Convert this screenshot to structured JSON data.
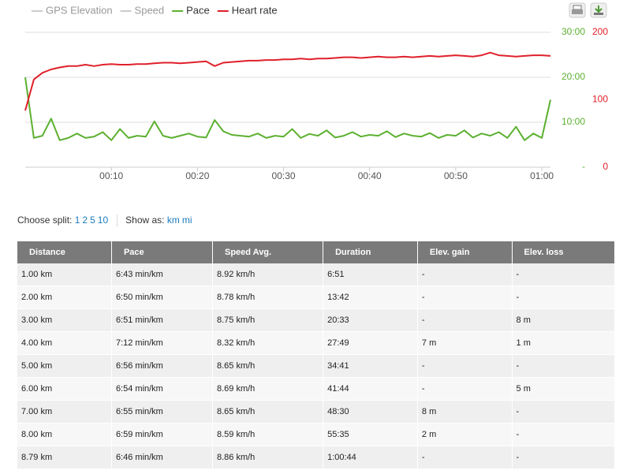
{
  "chart_data": {
    "type": "line",
    "hidden_series": [
      {
        "name": "GPS Elevation",
        "color": "#cccccc"
      },
      {
        "name": "Speed",
        "color": "#cccccc"
      }
    ],
    "x": [
      0,
      1,
      2,
      3,
      4,
      5,
      6,
      7,
      8,
      9,
      10,
      11,
      12,
      13,
      14,
      15,
      16,
      17,
      18,
      19,
      20,
      21,
      22,
      23,
      24,
      25,
      26,
      27,
      28,
      29,
      30,
      31,
      32,
      33,
      34,
      35,
      36,
      37,
      38,
      39,
      40,
      41,
      42,
      43,
      44,
      45,
      46,
      47,
      48,
      49,
      50,
      51,
      52,
      53,
      54,
      55,
      56,
      57,
      58,
      59,
      60,
      61
    ],
    "xlim": [
      0,
      61
    ],
    "xticks": [
      {
        "value": 10,
        "label": "00:10"
      },
      {
        "value": 20,
        "label": "00:20"
      },
      {
        "value": 30,
        "label": "00:30"
      },
      {
        "value": 40,
        "label": "00:40"
      },
      {
        "value": 50,
        "label": "00:50"
      },
      {
        "value": 60,
        "label": "01:00"
      }
    ],
    "ylim": [
      0,
      30
    ],
    "yticks": [
      {
        "value": 0,
        "label": "-"
      },
      {
        "value": 10,
        "label": "10:00"
      },
      {
        "value": 20,
        "label": "20:00"
      },
      {
        "value": 30,
        "label": "30:00"
      }
    ],
    "y2lim": [
      0,
      200
    ],
    "y2ticks": [
      0,
      100,
      200
    ],
    "grid": true,
    "series": [
      {
        "name": "Pace",
        "color": "#5cb030",
        "values": [
          20,
          6.5,
          7,
          10.8,
          6,
          6.5,
          7.5,
          6.5,
          6.8,
          7.8,
          6,
          8.5,
          6.5,
          7,
          6.8,
          10.2,
          7,
          6.5,
          7,
          7.5,
          6.8,
          6.6,
          10.5,
          8,
          7.2,
          7,
          6.8,
          7.5,
          6.5,
          7,
          6.8,
          8.5,
          6.5,
          7.4,
          7,
          8.2,
          6.6,
          7,
          7.8,
          6.8,
          7.2,
          7,
          8,
          6.7,
          7.5,
          7,
          6.8,
          7.6,
          6.5,
          7.2,
          7,
          8.2,
          6.6,
          7.5,
          7,
          7.8,
          6.5,
          9,
          6,
          7.5,
          6.5,
          15
        ]
      },
      {
        "name": "Heart rate",
        "color": "#e0202a",
        "axis": "y2",
        "values": [
          84,
          130,
          140,
          145,
          148,
          150,
          150,
          152,
          150,
          152,
          153,
          152,
          152,
          153,
          153,
          154,
          155,
          155,
          154,
          155,
          156,
          157,
          150,
          155,
          156,
          157,
          158,
          158,
          159,
          159,
          160,
          160,
          161,
          160,
          161,
          161,
          162,
          163,
          163,
          162,
          163,
          164,
          163,
          163,
          164,
          163,
          164,
          165,
          164,
          165,
          166,
          165,
          164,
          166,
          170,
          166,
          165,
          164,
          165,
          166,
          166,
          165
        ]
      }
    ]
  },
  "controls": {
    "split_label": "Choose split:",
    "splits": [
      "1",
      "2",
      "5",
      "10"
    ],
    "show_label": "Show as:",
    "units": [
      "km",
      "mi"
    ]
  },
  "table": {
    "headers": [
      "Distance",
      "Pace",
      "Speed Avg.",
      "Duration",
      "Elev. gain",
      "Elev. loss"
    ],
    "rows": [
      [
        "1.00 km",
        "6:43 min/km",
        "8.92 km/h",
        "6:51",
        "-",
        "-"
      ],
      [
        "2.00 km",
        "6:50 min/km",
        "8.78 km/h",
        "13:42",
        "-",
        "-"
      ],
      [
        "3.00 km",
        "6:51 min/km",
        "8.75 km/h",
        "20:33",
        "-",
        "8 m"
      ],
      [
        "4.00 km",
        "7:12 min/km",
        "8.32 km/h",
        "27:49",
        "7 m",
        "1 m"
      ],
      [
        "5.00 km",
        "6:56 min/km",
        "8.65 km/h",
        "34:41",
        "-",
        "-"
      ],
      [
        "6.00 km",
        "6:54 min/km",
        "8.69 km/h",
        "41:44",
        "-",
        "5 m"
      ],
      [
        "7.00 km",
        "6:55 min/km",
        "8.65 km/h",
        "48:30",
        "8 m",
        "-"
      ],
      [
        "8.00 km",
        "6:59 min/km",
        "8.59 km/h",
        "55:35",
        "2 m",
        "-"
      ],
      [
        "8.79 km",
        "6:46 min/km",
        "8.86 km/h",
        "1:00:44",
        "-",
        "-"
      ]
    ]
  }
}
